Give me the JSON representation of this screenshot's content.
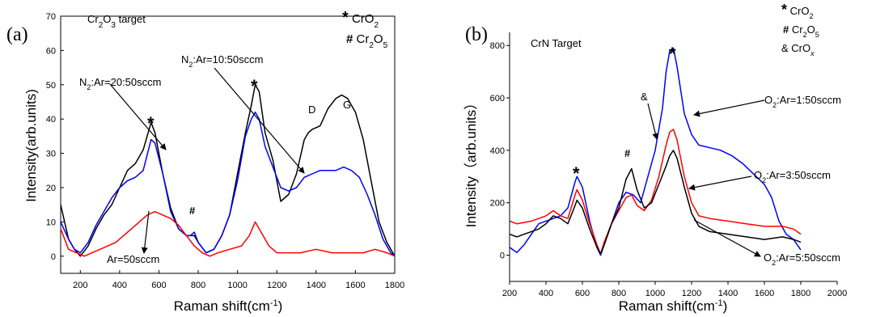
{
  "chart_data": [
    {
      "type": "line",
      "panel_label": "(a)",
      "title": "Cr2O3 target",
      "xlabel": "Raman shift(cm",
      "xlabel_sup": "-1",
      "xlabel_end": ")",
      "ylabel": "Intensity(arb.units)",
      "xlim": [
        100,
        1800
      ],
      "ylim": [
        -5,
        70
      ],
      "xticks": [
        200,
        400,
        600,
        800,
        1000,
        1200,
        1400,
        1600,
        1800
      ],
      "yticks": [
        0,
        10,
        20,
        30,
        40,
        50,
        60,
        70
      ],
      "legend": [
        {
          "symbol": "*",
          "label": "CrO2"
        },
        {
          "symbol": "#",
          "label": "Cr2O5"
        }
      ],
      "series": [
        {
          "name": "N2:Ar=20:50sccm",
          "color": "#000000",
          "x": [
            100,
            140,
            170,
            200,
            240,
            280,
            320,
            360,
            400,
            440,
            480,
            520,
            560,
            580,
            620,
            660,
            700,
            740,
            760,
            780,
            800,
            840,
            880,
            920,
            960,
            1000,
            1040,
            1070,
            1090,
            1110,
            1140,
            1180,
            1220,
            1260,
            1300,
            1340,
            1360,
            1380,
            1420,
            1460,
            1500,
            1530,
            1560,
            1600,
            1640,
            1680,
            1720,
            1760,
            1790,
            1800
          ],
          "y": [
            15,
            5,
            2,
            0,
            3,
            8,
            12,
            15,
            20,
            25,
            27,
            31,
            39,
            36,
            24,
            14,
            8,
            6,
            6,
            6,
            4,
            1,
            2,
            6,
            12,
            24,
            36,
            44,
            50,
            48,
            36,
            28,
            16,
            18,
            24,
            34,
            36,
            37,
            38,
            43,
            46,
            47,
            46,
            42,
            34,
            22,
            10,
            4,
            1,
            0
          ]
        },
        {
          "name": "N2:Ar=10:50sccm",
          "color": "#0000ff",
          "x": [
            100,
            140,
            170,
            200,
            240,
            280,
            320,
            360,
            400,
            440,
            480,
            520,
            560,
            580,
            620,
            660,
            700,
            740,
            760,
            780,
            800,
            840,
            880,
            920,
            960,
            1000,
            1040,
            1070,
            1090,
            1110,
            1140,
            1180,
            1220,
            1260,
            1300,
            1340,
            1380,
            1420,
            1460,
            1500,
            1540,
            1580,
            1620,
            1660,
            1700,
            1740,
            1780,
            1800
          ],
          "y": [
            10,
            5,
            2,
            1,
            4,
            9,
            13,
            17,
            20,
            22,
            23,
            25,
            34,
            33,
            24,
            13,
            8,
            6,
            6,
            7,
            4,
            1,
            2,
            6,
            12,
            22,
            35,
            40,
            42,
            40,
            32,
            26,
            20,
            19,
            20,
            23,
            24,
            25,
            25,
            25,
            26,
            25,
            23,
            18,
            12,
            5,
            1,
            0
          ]
        },
        {
          "name": "Ar=50sccm",
          "color": "#ff0000",
          "x": [
            100,
            140,
            180,
            220,
            260,
            300,
            340,
            380,
            420,
            460,
            500,
            540,
            580,
            620,
            660,
            700,
            740,
            780,
            820,
            860,
            900,
            960,
            1020,
            1060,
            1090,
            1120,
            1160,
            1200,
            1260,
            1320,
            1400,
            1480,
            1560,
            1640,
            1700,
            1760,
            1800
          ],
          "y": [
            8,
            2,
            1,
            0,
            1,
            2,
            3,
            4,
            6,
            8,
            10,
            12,
            13,
            12,
            11,
            9,
            6,
            3,
            1,
            0,
            1,
            2,
            3,
            6,
            10,
            7,
            3,
            1,
            1,
            1,
            2,
            1,
            1,
            1,
            2,
            1,
            0
          ]
        }
      ],
      "annotations": [
        {
          "text": "N2:Ar=20:50sccm"
        },
        {
          "text": "N2:Ar=10:50sccm"
        },
        {
          "text": "Ar=50sccm"
        },
        {
          "text": "D"
        },
        {
          "text": "G"
        },
        {
          "text": "*"
        },
        {
          "text": "*"
        },
        {
          "text": "#"
        }
      ]
    },
    {
      "type": "line",
      "panel_label": "(b)",
      "title": "CrN Target",
      "xlabel": "Raman shift(cm",
      "xlabel_sup": "-1",
      "xlabel_end": ")",
      "ylabel": "Intensity（arb.units）",
      "xlim": [
        200,
        2000
      ],
      "ylim": [
        -100,
        850
      ],
      "xticks": [
        200,
        400,
        600,
        800,
        1000,
        1200,
        1400,
        1600,
        1800,
        2000
      ],
      "yticks": [
        0,
        200,
        400,
        600,
        800
      ],
      "legend": [
        {
          "symbol": "*",
          "label": "CrO2"
        },
        {
          "symbol": "#",
          "label": "Cr2O5"
        },
        {
          "symbol": "&",
          "label": "CrOx"
        }
      ],
      "series": [
        {
          "name": "O2:Ar=1:50sccm",
          "color": "#0000ff",
          "x": [
            200,
            240,
            280,
            320,
            360,
            400,
            440,
            480,
            520,
            560,
            570,
            600,
            640,
            680,
            700,
            720,
            760,
            800,
            840,
            880,
            920,
            960,
            1000,
            1040,
            1060,
            1080,
            1100,
            1120,
            1160,
            1200,
            1240,
            1300,
            1360,
            1420,
            1480,
            1540,
            1600,
            1640,
            1680,
            1720,
            1760,
            1800
          ],
          "y": [
            30,
            10,
            40,
            80,
            120,
            130,
            140,
            150,
            180,
            280,
            300,
            260,
            130,
            30,
            0,
            40,
            120,
            200,
            240,
            230,
            200,
            300,
            400,
            560,
            700,
            780,
            790,
            720,
            540,
            460,
            420,
            410,
            400,
            380,
            350,
            310,
            270,
            220,
            130,
            80,
            60,
            20
          ]
        },
        {
          "name": "O2:Ar=3:50sccm",
          "color": "#ff0000",
          "x": [
            200,
            240,
            280,
            320,
            360,
            400,
            440,
            480,
            520,
            560,
            570,
            600,
            640,
            680,
            700,
            720,
            760,
            800,
            840,
            870,
            900,
            940,
            980,
            1020,
            1060,
            1080,
            1100,
            1120,
            1160,
            1200,
            1240,
            1300,
            1400,
            1500,
            1600,
            1700,
            1760,
            1800
          ],
          "y": [
            130,
            120,
            125,
            130,
            140,
            150,
            170,
            150,
            140,
            230,
            250,
            210,
            120,
            40,
            5,
            50,
            120,
            170,
            220,
            230,
            190,
            170,
            210,
            300,
            420,
            470,
            480,
            440,
            300,
            200,
            150,
            140,
            130,
            120,
            110,
            110,
            100,
            80
          ]
        },
        {
          "name": "O2:Ar=5:50sccm",
          "color": "#000000",
          "x": [
            200,
            240,
            280,
            320,
            360,
            400,
            440,
            480,
            520,
            560,
            570,
            600,
            640,
            680,
            700,
            720,
            760,
            800,
            840,
            870,
            900,
            940,
            980,
            1020,
            1060,
            1080,
            1100,
            1120,
            1160,
            1200,
            1240,
            1300,
            1400,
            1500,
            1600,
            1700,
            1760,
            1800
          ],
          "y": [
            80,
            70,
            80,
            90,
            100,
            120,
            150,
            140,
            120,
            190,
            210,
            180,
            100,
            30,
            5,
            40,
            120,
            180,
            290,
            330,
            250,
            180,
            200,
            270,
            340,
            380,
            400,
            370,
            260,
            160,
            110,
            90,
            80,
            70,
            60,
            70,
            60,
            50
          ]
        }
      ],
      "annotations": [
        {
          "text": "O2:Ar=1:50sccm"
        },
        {
          "text": "O2:Ar=3:50sccm"
        },
        {
          "text": "O2:Ar=5:50sccm"
        },
        {
          "text": "&"
        },
        {
          "text": "*"
        },
        {
          "text": "*"
        },
        {
          "text": "#"
        }
      ]
    }
  ]
}
